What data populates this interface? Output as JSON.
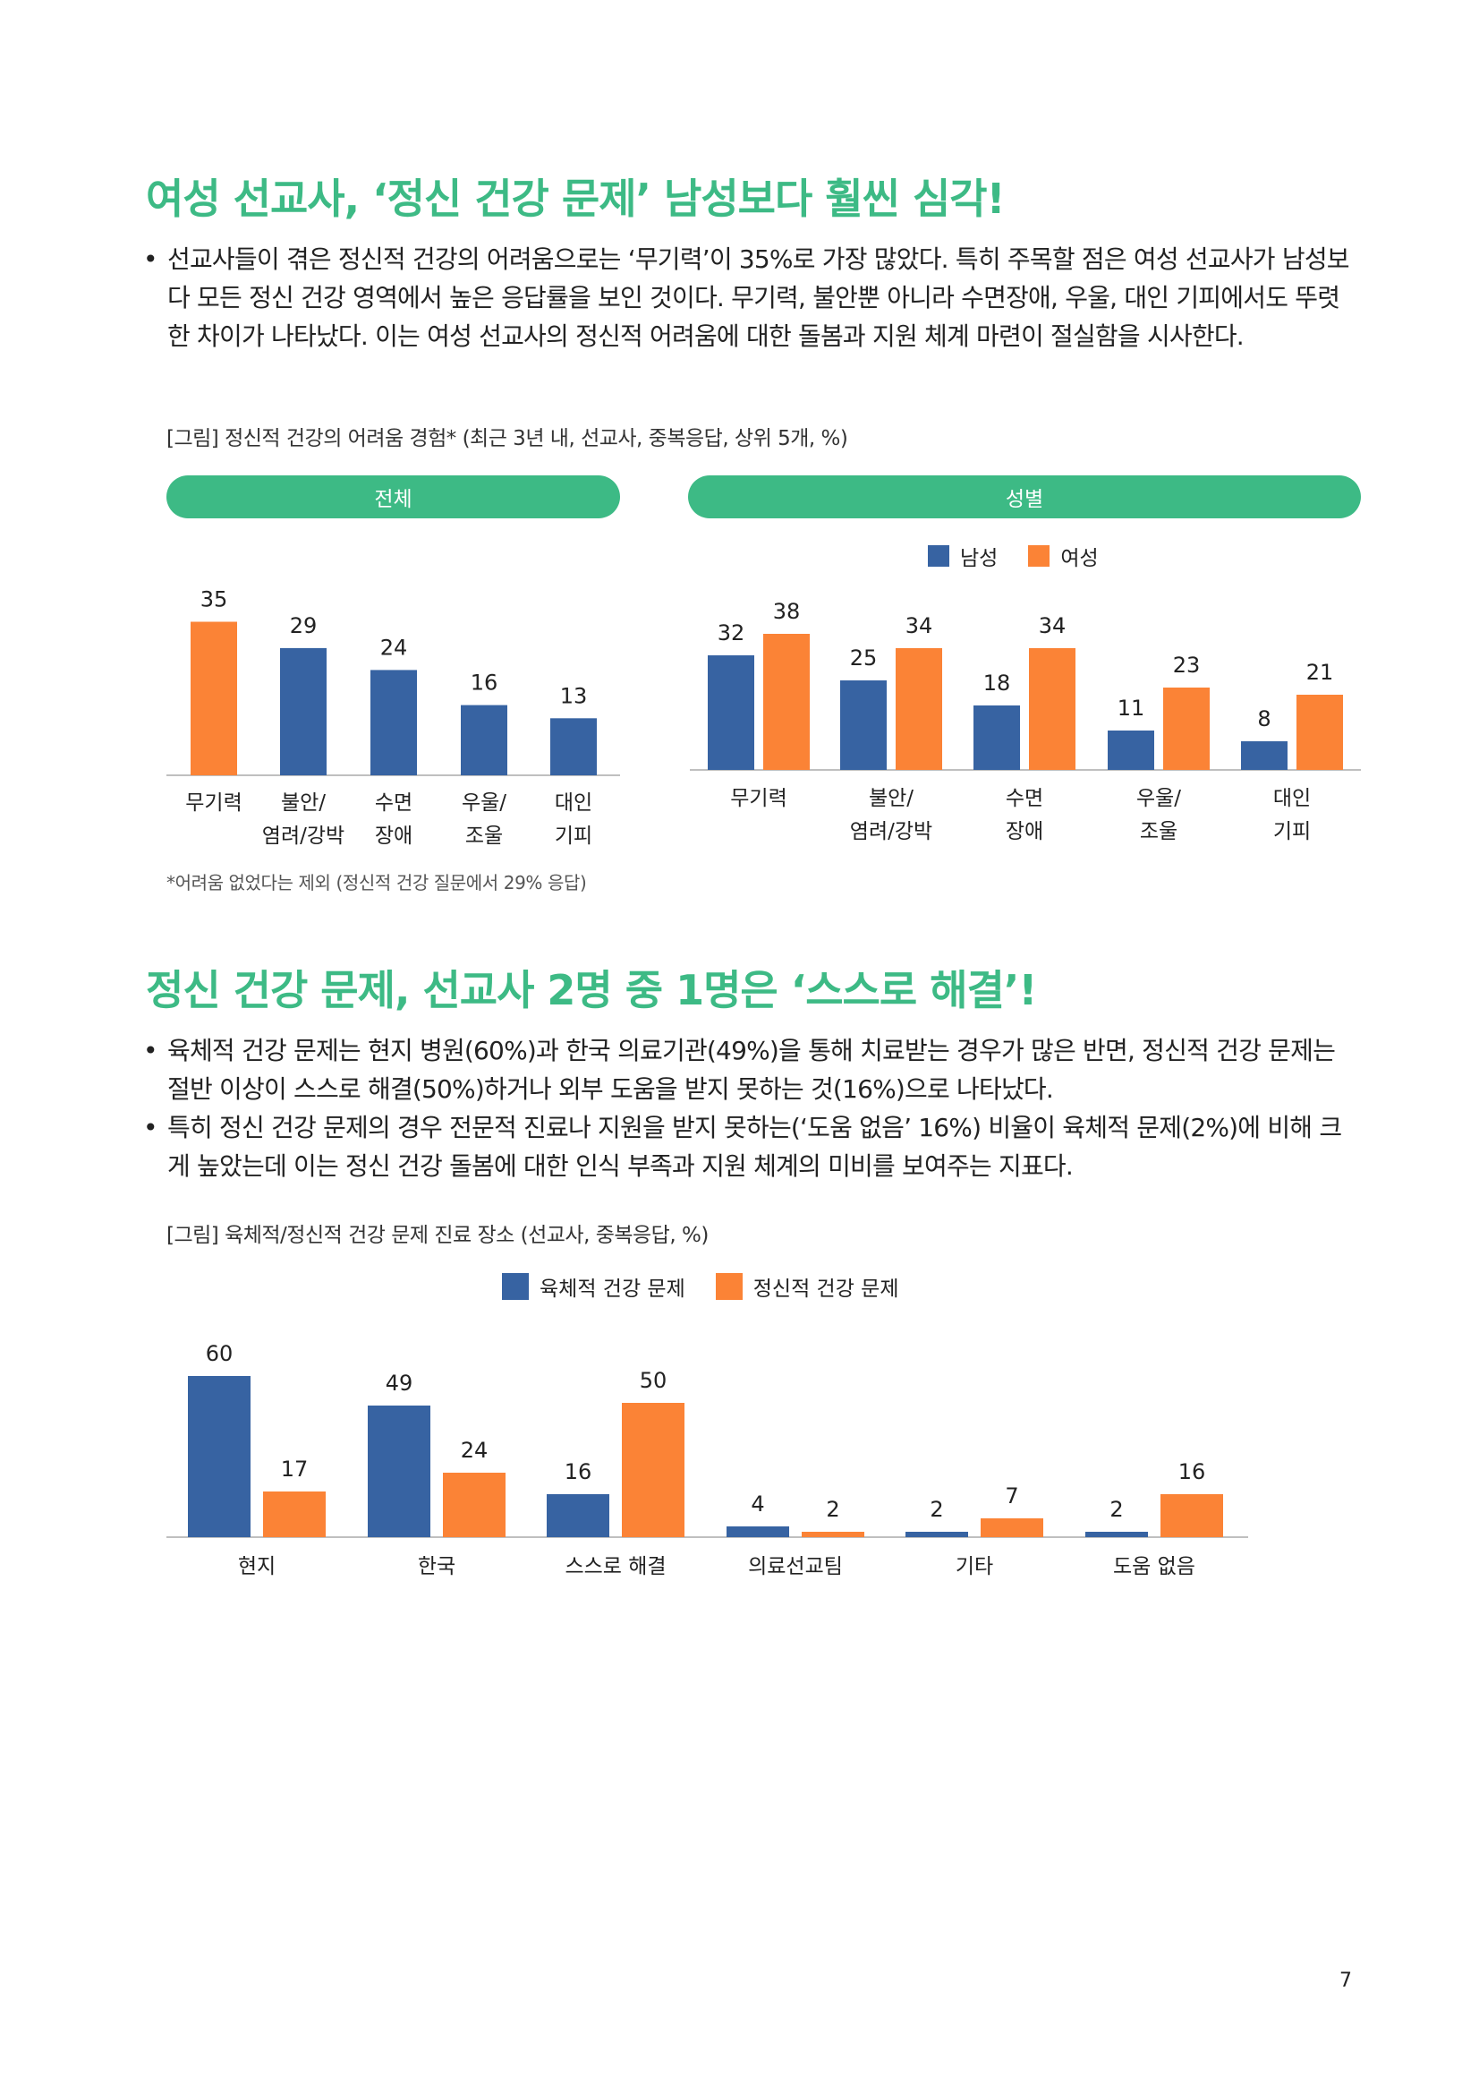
{
  "section1": {
    "title": "여성 선교사, ‘정신 건강 문제’ 남성보다 훨씬 심각!",
    "bullets": [
      "선교사들이 겪은 정신적 건강의 어려움으로는 ‘무기력’이 35%로 가장 많았다. 특히 주목할 점은 여성 선교사가 남성보다 모든 정신 건강 영역에서 높은 응답률을 보인 것이다. 무기력, 불안뿐 아니라 수면장애, 우울, 대인 기피에서도 뚜렷한 차이가 나타났다. 이는 여성 선교사의 정신적 어려움에 대한 돌봄과 지원 체계 마련이 절실함을 시사한다."
    ],
    "caption": "[그림] 정신적 건강의 어려움 경험* (최근 3년 내, 선교사, 중복응답, 상위 5개, %)",
    "pill_total": "전체",
    "pill_gender": "성별",
    "footnote": "*어려움 없었다는 제외 (정신적 건강 질문에서 29% 응답)"
  },
  "section2": {
    "title": "정신 건강 문제, 선교사 2명 중 1명은 ‘스스로 해결’!",
    "bullets": [
      "육체적 건강 문제는 현지 병원(60%)과 한국 의료기관(49%)을 통해 치료받는 경우가 많은 반면, 정신적 건강 문제는 절반 이상이 스스로 해결(50%)하거나 외부 도움을 받지 못하는 것(16%)으로 나타났다.",
      "특히 정신 건강 문제의 경우 전문적 진료나 지원을 받지 못하는(‘도움 없음’ 16%) 비율이 육체적 문제(2%)에 비해 크게 높았는데 이는 정신 건강 돌봄에 대한 인식 부족과 지원 체계의 미비를 보여주는 지표다."
    ],
    "caption": "[그림] 육체적/정신적 건강 문제 진료 장소 (선교사, 중복응답, %)"
  },
  "colors": {
    "blue": "#3763a2",
    "orange": "#fb8336",
    "green": "#3dba85",
    "axis": "#bfbfbf"
  },
  "page_number": "7",
  "chart_data": [
    {
      "type": "bar",
      "panel": "전체",
      "categories": [
        "무기력",
        "불안/\n염려/강박",
        "수면\n장애",
        "우울/\n조울",
        "대인\n기피"
      ],
      "values": [
        35,
        29,
        24,
        16,
        13
      ],
      "bar_colors": [
        "#fb8336",
        "#3763a2",
        "#3763a2",
        "#3763a2",
        "#3763a2"
      ],
      "ylim": [
        0,
        40
      ],
      "grid": false
    },
    {
      "type": "bar",
      "panel": "성별",
      "categories": [
        "무기력",
        "불안/\n염려/강박",
        "수면\n장애",
        "우울/\n조울",
        "대인\n기피"
      ],
      "series": [
        {
          "name": "남성",
          "values": [
            32,
            25,
            18,
            11,
            8
          ],
          "color": "#3763a2"
        },
        {
          "name": "여성",
          "values": [
            38,
            34,
            34,
            23,
            21
          ],
          "color": "#fb8336"
        }
      ],
      "legend": "top-right",
      "ylim": [
        0,
        40
      ],
      "grid": false
    },
    {
      "type": "bar",
      "categories": [
        "현지",
        "한국",
        "스스로 해결",
        "의료선교팀",
        "기타",
        "도움 없음"
      ],
      "series": [
        {
          "name": "육체적 건강 문제",
          "values": [
            60,
            49,
            16,
            4,
            2,
            2
          ],
          "color": "#3763a2"
        },
        {
          "name": "정신적 건강 문제",
          "values": [
            17,
            24,
            50,
            2,
            7,
            16
          ],
          "color": "#fb8336"
        }
      ],
      "legend": "top-center",
      "ylim": [
        0,
        65
      ],
      "grid": false
    }
  ]
}
